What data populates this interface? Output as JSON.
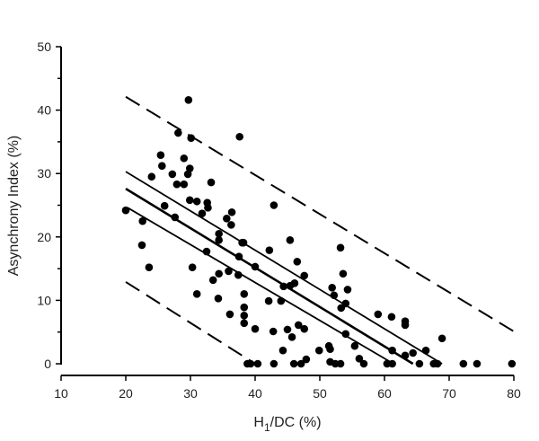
{
  "chart_data": {
    "type": "scatter",
    "title": "",
    "xlabel": "H1/DC (%)",
    "xlabel_main": "H",
    "xlabel_sub": "1",
    "xlabel_rest": "/DC (%)",
    "ylabel": "Asynchrony Index (%)",
    "xlim": [
      10,
      80
    ],
    "ylim": [
      0,
      50
    ],
    "xticks": [
      10,
      20,
      30,
      40,
      50,
      60,
      70,
      80
    ],
    "yticks": [
      0,
      10,
      20,
      30,
      40,
      50
    ],
    "grid": false,
    "legend": null,
    "points": [
      [
        20.0,
        24.2
      ],
      [
        22.6,
        22.5
      ],
      [
        22.5,
        18.7
      ],
      [
        23.6,
        15.2
      ],
      [
        24.0,
        29.5
      ],
      [
        25.4,
        32.9
      ],
      [
        25.6,
        31.2
      ],
      [
        26.0,
        24.9
      ],
      [
        27.2,
        29.9
      ],
      [
        27.6,
        23.1
      ],
      [
        27.9,
        28.3
      ],
      [
        28.1,
        36.4
      ],
      [
        29.0,
        32.4
      ],
      [
        29.0,
        28.3
      ],
      [
        29.6,
        29.9
      ],
      [
        29.9,
        30.8
      ],
      [
        29.7,
        41.6
      ],
      [
        30.1,
        35.6
      ],
      [
        33.2,
        28.6
      ],
      [
        29.9,
        25.8
      ],
      [
        31.0,
        25.6
      ],
      [
        32.6,
        25.4
      ],
      [
        32.7,
        24.6
      ],
      [
        31.8,
        23.7
      ],
      [
        30.3,
        15.2
      ],
      [
        33.5,
        13.2
      ],
      [
        34.4,
        14.2
      ],
      [
        35.9,
        14.6
      ],
      [
        37.4,
        14.0
      ],
      [
        37.6,
        35.8
      ],
      [
        36.4,
        23.9
      ],
      [
        35.6,
        22.9
      ],
      [
        36.3,
        21.9
      ],
      [
        34.4,
        20.5
      ],
      [
        34.4,
        19.5
      ],
      [
        38.0,
        19.1
      ],
      [
        32.5,
        17.7
      ],
      [
        37.5,
        16.9
      ],
      [
        40.0,
        15.3
      ],
      [
        31.0,
        11.0
      ],
      [
        34.3,
        10.3
      ],
      [
        38.3,
        11.0
      ],
      [
        38.3,
        8.9
      ],
      [
        36.1,
        7.8
      ],
      [
        38.3,
        7.6
      ],
      [
        38.3,
        6.4
      ],
      [
        38.8,
        0.0
      ],
      [
        42.9,
        25.0
      ],
      [
        38.2,
        19.1
      ],
      [
        45.4,
        19.5
      ],
      [
        42.2,
        17.9
      ],
      [
        46.5,
        16.1
      ],
      [
        53.2,
        18.3
      ],
      [
        47.6,
        13.9
      ],
      [
        53.6,
        14.2
      ],
      [
        46.1,
        12.7
      ],
      [
        44.4,
        12.2
      ],
      [
        45.4,
        12.3
      ],
      [
        51.9,
        12.0
      ],
      [
        54.3,
        11.7
      ],
      [
        52.2,
        10.8
      ],
      [
        42.1,
        9.9
      ],
      [
        44.0,
        9.9
      ],
      [
        54.0,
        9.5
      ],
      [
        53.3,
        8.8
      ],
      [
        40.0,
        5.5
      ],
      [
        42.8,
        5.1
      ],
      [
        45.0,
        5.4
      ],
      [
        46.7,
        6.1
      ],
      [
        47.6,
        5.5
      ],
      [
        45.7,
        4.2
      ],
      [
        54.0,
        4.7
      ],
      [
        44.3,
        2.1
      ],
      [
        49.9,
        2.1
      ],
      [
        51.4,
        2.8
      ],
      [
        51.6,
        2.3
      ],
      [
        55.4,
        2.8
      ],
      [
        39.3,
        0.0
      ],
      [
        40.4,
        0.0
      ],
      [
        42.9,
        0.0
      ],
      [
        46.0,
        0.0
      ],
      [
        47.1,
        0.0
      ],
      [
        47.9,
        0.7
      ],
      [
        51.6,
        0.3
      ],
      [
        52.4,
        0.0
      ],
      [
        53.2,
        0.0
      ],
      [
        56.1,
        0.8
      ],
      [
        56.8,
        0.0
      ],
      [
        59.0,
        7.8
      ],
      [
        61.1,
        7.4
      ],
      [
        63.2,
        6.7
      ],
      [
        63.2,
        6.1
      ],
      [
        68.9,
        4.0
      ],
      [
        61.2,
        2.1
      ],
      [
        66.4,
        2.1
      ],
      [
        64.4,
        1.7
      ],
      [
        63.2,
        1.3
      ],
      [
        60.4,
        0.0
      ],
      [
        61.2,
        0.0
      ],
      [
        65.4,
        0.0
      ],
      [
        67.6,
        0.0
      ],
      [
        68.2,
        0.0
      ],
      [
        72.2,
        0.0
      ],
      [
        74.3,
        0.0
      ],
      [
        79.7,
        0.0
      ]
    ],
    "lines": {
      "regression": {
        "style": "solid",
        "width": 2.6,
        "x": [
          20.0,
          64.4
        ],
        "y": [
          27.6,
          0.0
        ]
      },
      "confidence_upper": {
        "style": "solid",
        "width": 1.8,
        "x": [
          20.0,
          68.9
        ],
        "y": [
          30.3,
          0.0
        ]
      },
      "confidence_lower": {
        "style": "solid",
        "width": 1.8,
        "x": [
          20.3,
          61.4
        ],
        "y": [
          24.6,
          0.0
        ]
      },
      "prediction_upper": {
        "style": "dashed",
        "width": 2,
        "x": [
          20.0,
          80.0
        ],
        "y": [
          42.1,
          5.1
        ]
      },
      "prediction_lower": {
        "style": "dashed",
        "width": 2,
        "x": [
          20.0,
          40.0
        ],
        "y": [
          12.9,
          0.0
        ]
      }
    }
  },
  "colors": {
    "points": "#000000",
    "lines": "#000000",
    "axis": "#000000",
    "text": "#222222",
    "background": "#ffffff"
  }
}
